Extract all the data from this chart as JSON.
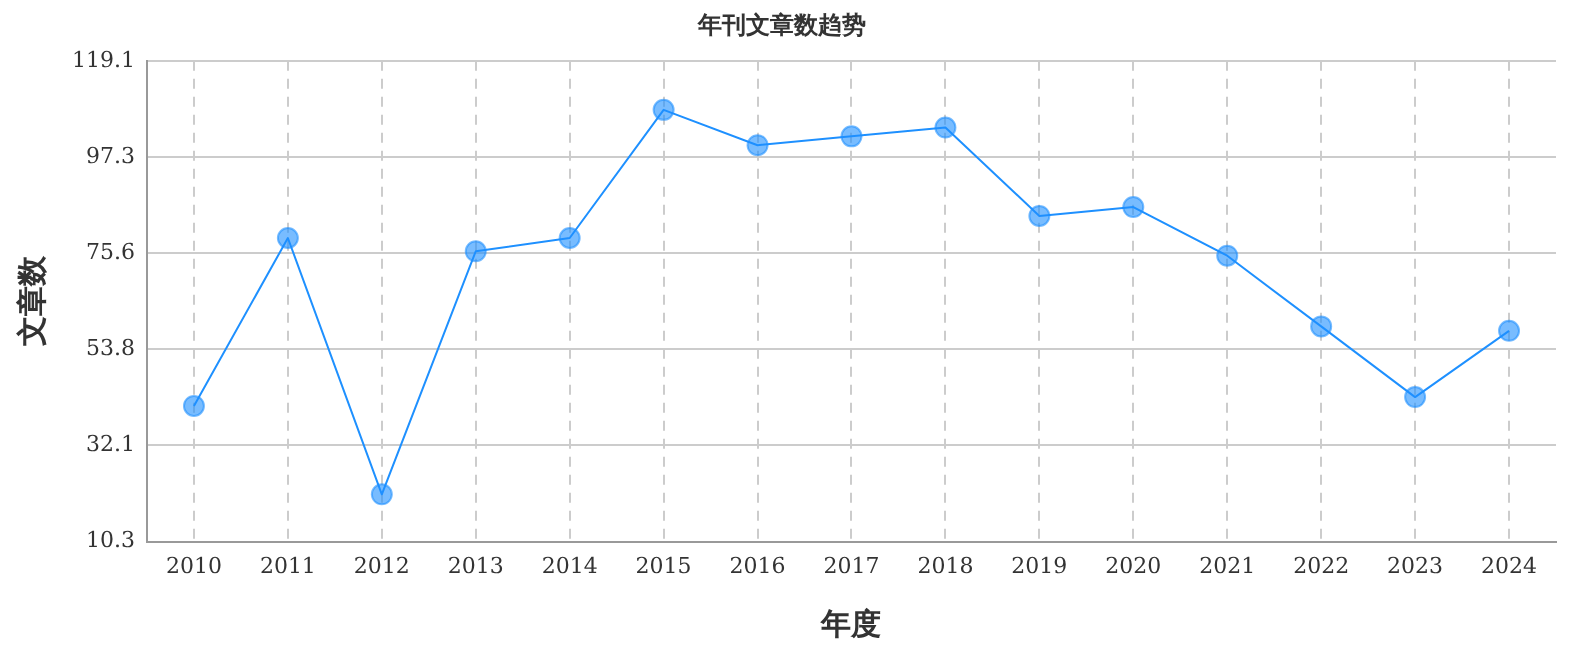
{
  "chart_data": {
    "type": "line",
    "title": "年刊文章数趋势",
    "xlabel": "年度",
    "ylabel": "文章数",
    "categories": [
      "2010",
      "2011",
      "2012",
      "2013",
      "2014",
      "2015",
      "2016",
      "2017",
      "2018",
      "2019",
      "2020",
      "2021",
      "2022",
      "2023",
      "2024"
    ],
    "series": [
      {
        "color": "#1e90ff",
        "values": [
          41,
          79,
          21,
          76,
          79,
          108,
          100,
          102,
          104,
          84,
          86,
          75,
          59,
          43,
          58
        ]
      }
    ],
    "ylim": [
      10.3,
      119.1
    ],
    "yticks": [
      10.3,
      32.1,
      53.8,
      75.6,
      97.3,
      119.1
    ],
    "grid": true,
    "legend": false,
    "marker": "circle",
    "line_style": "solid"
  }
}
